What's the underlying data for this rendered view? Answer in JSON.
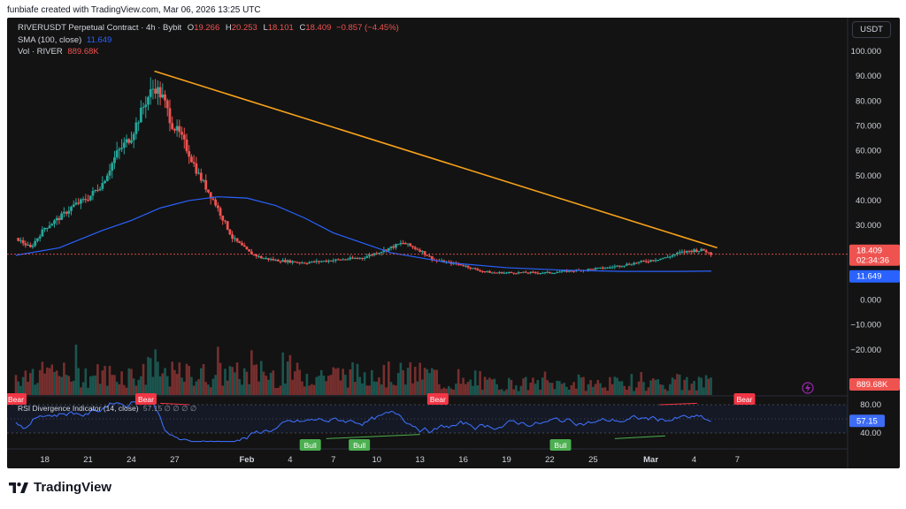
{
  "caption": "funbiafe created with TradingView.com, Mar 06, 2026 13:25 UTC",
  "legend": {
    "symbol": "RIVERUSDT Perpetual Contract · 4h · Bybit",
    "o_label": "O",
    "o": "19.266",
    "h_label": "H",
    "h": "20.253",
    "l_label": "L",
    "l": "18.101",
    "c_label": "C",
    "c": "18.409",
    "change": "−0.857 (−4.45%)",
    "sma_label": "SMA (100, close)",
    "sma_value": "11.649",
    "vol_label": "Vol · RIVER",
    "vol_value": "889.68K",
    "rsi_label": "RSI Divergence Indicator (14, close)",
    "rsi_dots": "57.15 ∅ ∅ ∅ ∅"
  },
  "unit_button": "USDT",
  "price_badge": {
    "value": "18.409",
    "countdown": "02:34:36"
  },
  "sma_badge": "11.649",
  "vol_badge": "889.68K",
  "rsi_badge": "57.15",
  "brand": "TradingView",
  "colors": {
    "up": "#26a69a",
    "down": "#ef5350",
    "sma": "#2962ff",
    "trendline": "#f7a21b",
    "rsi": "#3d6cf5",
    "bull": "#4caf50",
    "bear": "#f23645"
  },
  "chart_data": {
    "type": "candlestick",
    "timeframe": "4h",
    "price_axis": {
      "ylim": [
        -30,
        100
      ],
      "ticks": [
        100,
        90,
        80,
        70,
        60,
        50,
        40,
        30,
        20,
        0,
        -10,
        -20
      ],
      "tick_labels": [
        "100.000",
        "90.000",
        "80.000",
        "70.000",
        "60.000",
        "50.000",
        "40.000",
        "30.000",
        "20.000",
        "0.000",
        "−10.000",
        "−20.000"
      ]
    },
    "x_ticks": [
      "18",
      "21",
      "24",
      "27",
      "Feb",
      "4",
      "7",
      "10",
      "13",
      "16",
      "19",
      "22",
      "25",
      "Mar",
      "4",
      "7"
    ],
    "price_path": [
      [
        16,
        25
      ],
      [
        17,
        21
      ],
      [
        18,
        29
      ],
      [
        19,
        33
      ],
      [
        20,
        38
      ],
      [
        21,
        41
      ],
      [
        22,
        47
      ],
      [
        23,
        59
      ],
      [
        24,
        66
      ],
      [
        25,
        80
      ],
      [
        25.6,
        86
      ],
      [
        26.2,
        81
      ],
      [
        26.8,
        71
      ],
      [
        27.4,
        66
      ],
      [
        28,
        59
      ],
      [
        28.6,
        51
      ],
      [
        29.2,
        45
      ],
      [
        29.8,
        39
      ],
      [
        30.4,
        32
      ],
      [
        31,
        25
      ],
      [
        31.6,
        22
      ],
      [
        32.2,
        19
      ],
      [
        33,
        17
      ],
      [
        34,
        16
      ],
      [
        36,
        15
      ],
      [
        38,
        16
      ],
      [
        40,
        17
      ],
      [
        41.5,
        20
      ],
      [
        42.8,
        23
      ],
      [
        44,
        20
      ],
      [
        45,
        16
      ],
      [
        46,
        15
      ],
      [
        47,
        14
      ],
      [
        48,
        12
      ],
      [
        49,
        11
      ],
      [
        51,
        11
      ],
      [
        53,
        11
      ],
      [
        55,
        12
      ],
      [
        57,
        13
      ],
      [
        59,
        15
      ],
      [
        60,
        16
      ],
      [
        61,
        17
      ],
      [
        62,
        19
      ],
      [
        63,
        20
      ],
      [
        63.7,
        20
      ],
      [
        64.2,
        18.4
      ]
    ],
    "sma_path": [
      [
        16,
        18
      ],
      [
        19,
        21
      ],
      [
        22,
        28
      ],
      [
        24,
        32
      ],
      [
        26,
        37
      ],
      [
        28,
        40
      ],
      [
        30,
        41.5
      ],
      [
        32,
        41
      ],
      [
        34,
        38
      ],
      [
        36,
        33
      ],
      [
        38,
        27
      ],
      [
        40,
        23
      ],
      [
        42,
        19
      ],
      [
        44,
        17
      ],
      [
        46,
        15
      ],
      [
        50,
        13
      ],
      [
        54,
        12
      ],
      [
        58,
        11.5
      ],
      [
        60,
        11.5
      ],
      [
        62,
        11.5
      ],
      [
        64.2,
        11.649
      ]
    ],
    "trendline": {
      "from": [
        25.6,
        92
      ],
      "to": [
        64.6,
        21
      ]
    },
    "last_price": 18.409,
    "sma_last": 11.649,
    "rsi": {
      "levels": [
        80,
        40
      ],
      "last": 57.15,
      "signals": [
        {
          "type": "Bear",
          "x": 16
        },
        {
          "type": "Bear",
          "x": 26.6
        },
        {
          "type": "Bull",
          "x": 40
        },
        {
          "type": "Bull",
          "x": 44
        },
        {
          "type": "Bear",
          "x": 50.4
        },
        {
          "type": "Bull",
          "x": 60.4
        },
        {
          "type": "Bear",
          "x": 75.4
        }
      ]
    }
  }
}
